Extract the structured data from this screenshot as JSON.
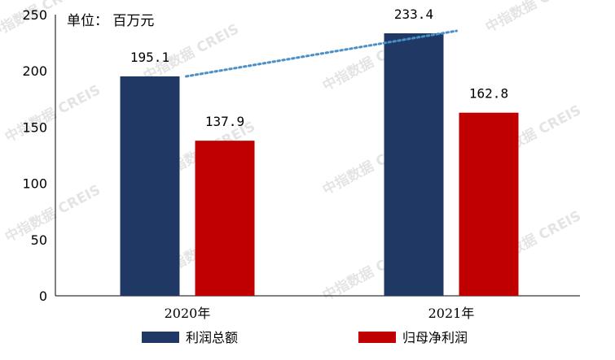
{
  "chart_data": {
    "type": "bar",
    "unit_label": "单位： 百万元",
    "categories": [
      "2020年",
      "2021年"
    ],
    "series": [
      {
        "name": "利润总额",
        "color": "#1f3864",
        "values": [
          195.1,
          233.4
        ]
      },
      {
        "name": "归母净利润",
        "color": "#c00000",
        "values": [
          137.9,
          162.8
        ]
      }
    ],
    "data_labels": [
      [
        "195.1",
        "233.4"
      ],
      [
        "137.9",
        "162.8"
      ]
    ],
    "ylim": [
      0,
      250
    ],
    "yticks": [
      "0",
      "50",
      "100",
      "150",
      "200",
      "250"
    ],
    "trend_line": {
      "series": "利润总额",
      "style": "dotted",
      "color": "#4a90c8"
    },
    "legend_position": "bottom",
    "grid": false
  },
  "watermark": "中指数据 CREIS"
}
